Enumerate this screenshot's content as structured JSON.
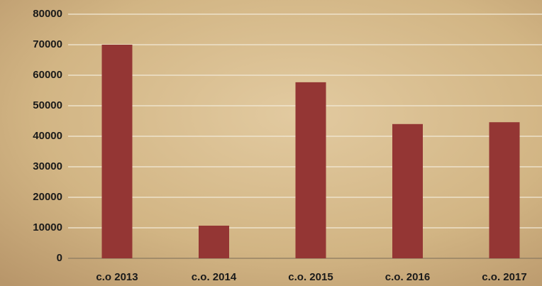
{
  "chart_data": {
    "type": "bar",
    "categories": [
      "c.o 2013",
      "c.o. 2014",
      "c.o. 2015",
      "c.o. 2016",
      "c.o. 2017"
    ],
    "values": [
      70000,
      10700,
      57700,
      44000,
      44600
    ],
    "color": "#943634",
    "ylim": [
      0,
      80000
    ],
    "yticks": [
      0,
      10000,
      20000,
      30000,
      40000,
      50000,
      60000,
      70000,
      80000
    ],
    "grid": true
  }
}
